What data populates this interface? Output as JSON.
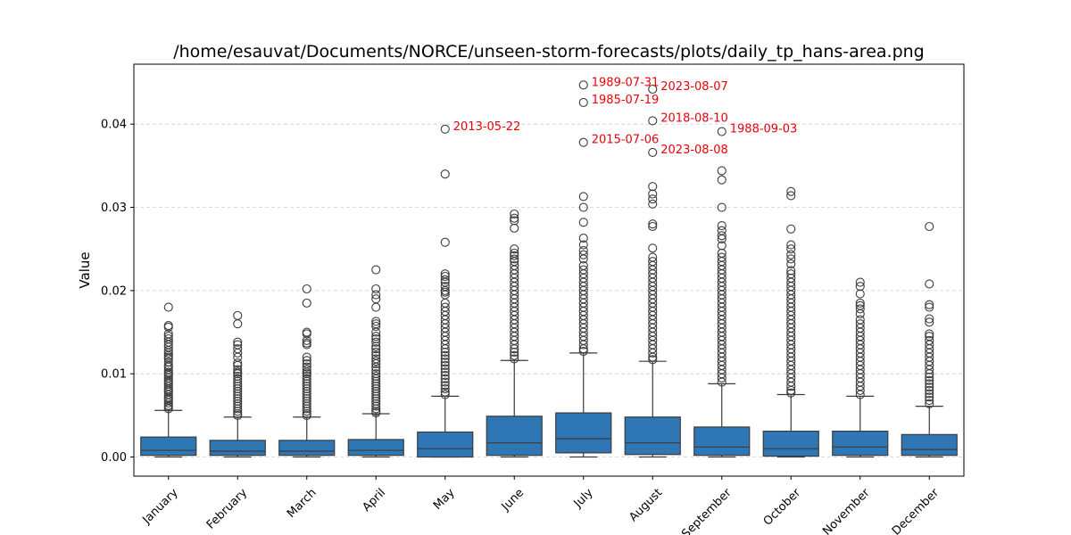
{
  "chart_data": {
    "type": "box",
    "title": "/home/esauvat/Documents/NORCE/unseen-storm-forecasts/plots/daily_tp_hans-area.png",
    "xlabel": "",
    "ylabel": "Value",
    "ylim": [
      -0.0023,
      0.0472
    ],
    "yticks": [
      0.0,
      0.01,
      0.02,
      0.03,
      0.04
    ],
    "ytick_labels": [
      "0.00",
      "0.01",
      "0.02",
      "0.03",
      "0.04"
    ],
    "grid": "y-dashed",
    "box_color": "#2f77b4",
    "annotation_color": "#e8000b",
    "categories": [
      "January",
      "February",
      "March",
      "April",
      "May",
      "June",
      "July",
      "August",
      "September",
      "October",
      "November",
      "December"
    ],
    "boxes": [
      {
        "month": "January",
        "min": 0.0,
        "q1": 0.0002,
        "median": 0.0008,
        "q3": 0.0024,
        "whisker_high": 0.0056,
        "outliers": [
          0.018,
          0.0158,
          0.0156,
          0.0148,
          0.0145,
          0.0142,
          0.0138,
          0.0135,
          0.0132,
          0.0128,
          0.0125,
          0.0122,
          0.012,
          0.0118,
          0.0114,
          0.011,
          0.0108,
          0.0105,
          0.0102,
          0.01,
          0.0098,
          0.0095,
          0.0092,
          0.009,
          0.0088,
          0.0085,
          0.0082,
          0.008,
          0.0078,
          0.0075,
          0.0072,
          0.007,
          0.0068,
          0.0065,
          0.0062,
          0.006,
          0.0058
        ]
      },
      {
        "month": "February",
        "min": 0.0,
        "q1": 0.0002,
        "median": 0.0007,
        "q3": 0.002,
        "whisker_high": 0.0048,
        "outliers": [
          0.017,
          0.016,
          0.0138,
          0.0135,
          0.013,
          0.0125,
          0.012,
          0.0113,
          0.011,
          0.0105,
          0.0102,
          0.01,
          0.0097,
          0.0094,
          0.0091,
          0.0088,
          0.0085,
          0.0082,
          0.0079,
          0.0076,
          0.0073,
          0.007,
          0.0067,
          0.0064,
          0.0061,
          0.0058,
          0.0055,
          0.0052,
          0.005
        ]
      },
      {
        "month": "March",
        "min": 0.0,
        "q1": 0.0002,
        "median": 0.0007,
        "q3": 0.002,
        "whisker_high": 0.0048,
        "outliers": [
          0.0202,
          0.0185,
          0.015,
          0.0148,
          0.014,
          0.0137,
          0.0135,
          0.012,
          0.0116,
          0.0112,
          0.0108,
          0.0105,
          0.0102,
          0.01,
          0.0097,
          0.0094,
          0.0091,
          0.0088,
          0.0085,
          0.0082,
          0.0079,
          0.0076,
          0.0073,
          0.007,
          0.0067,
          0.0064,
          0.0061,
          0.0058,
          0.0055,
          0.0052,
          0.005
        ]
      },
      {
        "month": "April",
        "min": 0.0,
        "q1": 0.0002,
        "median": 0.0008,
        "q3": 0.0021,
        "whisker_high": 0.0052,
        "outliers": [
          0.0225,
          0.0202,
          0.0195,
          0.019,
          0.018,
          0.0163,
          0.016,
          0.0157,
          0.015,
          0.0145,
          0.0142,
          0.0138,
          0.0133,
          0.013,
          0.0126,
          0.0122,
          0.0118,
          0.0115,
          0.0112,
          0.0108,
          0.0104,
          0.01,
          0.0097,
          0.0094,
          0.0091,
          0.0088,
          0.0085,
          0.0082,
          0.0079,
          0.0076,
          0.0073,
          0.007,
          0.0067,
          0.0064,
          0.0061,
          0.0058,
          0.0055,
          0.0053
        ]
      },
      {
        "month": "May",
        "min": 0.0,
        "q1": 0.0,
        "median": 0.001,
        "q3": 0.003,
        "whisker_high": 0.0073,
        "outliers": [
          0.0394,
          0.034,
          0.0258,
          0.022,
          0.0217,
          0.0213,
          0.021,
          0.0205,
          0.02,
          0.0198,
          0.0195,
          0.0185,
          0.018,
          0.0175,
          0.017,
          0.0165,
          0.016,
          0.0155,
          0.015,
          0.0145,
          0.014,
          0.0135,
          0.013,
          0.0126,
          0.0122,
          0.0118,
          0.0114,
          0.011,
          0.0106,
          0.0102,
          0.0098,
          0.0094,
          0.009,
          0.0086,
          0.0082,
          0.0078,
          0.0075
        ]
      },
      {
        "month": "June",
        "min": 0.0,
        "q1": 0.0002,
        "median": 0.0017,
        "q3": 0.0049,
        "whisker_high": 0.0116,
        "outliers": [
          0.0292,
          0.0287,
          0.0284,
          0.0275,
          0.025,
          0.0245,
          0.0242,
          0.0238,
          0.0235,
          0.023,
          0.0225,
          0.022,
          0.0215,
          0.021,
          0.0205,
          0.02,
          0.0195,
          0.019,
          0.0185,
          0.018,
          0.0175,
          0.017,
          0.0165,
          0.016,
          0.0155,
          0.015,
          0.0145,
          0.014,
          0.0135,
          0.013,
          0.0126,
          0.0122,
          0.0118
        ]
      },
      {
        "month": "July",
        "min": 0.0,
        "q1": 0.0005,
        "median": 0.0022,
        "q3": 0.0053,
        "whisker_high": 0.0125,
        "outliers": [
          0.0447,
          0.0426,
          0.0378,
          0.0313,
          0.03,
          0.0282,
          0.0263,
          0.0255,
          0.0248,
          0.0243,
          0.0238,
          0.023,
          0.0225,
          0.022,
          0.0215,
          0.021,
          0.0205,
          0.02,
          0.0195,
          0.019,
          0.0185,
          0.018,
          0.0175,
          0.017,
          0.0165,
          0.016,
          0.0155,
          0.015,
          0.0145,
          0.014,
          0.0135,
          0.013,
          0.0127
        ]
      },
      {
        "month": "August",
        "min": 0.0,
        "q1": 0.0003,
        "median": 0.0017,
        "q3": 0.0048,
        "whisker_high": 0.0115,
        "outliers": [
          0.0442,
          0.0404,
          0.0366,
          0.0325,
          0.0316,
          0.031,
          0.0304,
          0.028,
          0.0277,
          0.0251,
          0.024,
          0.0235,
          0.023,
          0.0225,
          0.022,
          0.0215,
          0.021,
          0.0205,
          0.02,
          0.0195,
          0.019,
          0.0185,
          0.018,
          0.0175,
          0.017,
          0.0165,
          0.016,
          0.0155,
          0.015,
          0.0145,
          0.014,
          0.0135,
          0.013,
          0.0125,
          0.012,
          0.0117
        ]
      },
      {
        "month": "September",
        "min": 0.0,
        "q1": 0.0002,
        "median": 0.0012,
        "q3": 0.0036,
        "whisker_high": 0.0088,
        "outliers": [
          0.0391,
          0.0344,
          0.0333,
          0.03,
          0.0278,
          0.0272,
          0.0266,
          0.0262,
          0.0254,
          0.0245,
          0.024,
          0.0235,
          0.023,
          0.0225,
          0.022,
          0.0215,
          0.021,
          0.0205,
          0.02,
          0.0195,
          0.019,
          0.0185,
          0.018,
          0.0175,
          0.017,
          0.0165,
          0.016,
          0.0155,
          0.015,
          0.0145,
          0.014,
          0.0135,
          0.013,
          0.0125,
          0.012,
          0.0115,
          0.011,
          0.0105,
          0.01,
          0.0095,
          0.009
        ]
      },
      {
        "month": "October",
        "min": 0.0,
        "q1": 0.0001,
        "median": 0.001,
        "q3": 0.0031,
        "whisker_high": 0.0075,
        "outliers": [
          0.0319,
          0.0314,
          0.0274,
          0.0255,
          0.025,
          0.0243,
          0.0238,
          0.0232,
          0.0224,
          0.022,
          0.0215,
          0.021,
          0.0205,
          0.02,
          0.0195,
          0.019,
          0.0185,
          0.018,
          0.0175,
          0.017,
          0.0165,
          0.016,
          0.0155,
          0.015,
          0.0145,
          0.014,
          0.0135,
          0.013,
          0.0125,
          0.012,
          0.0115,
          0.011,
          0.0105,
          0.01,
          0.0095,
          0.009,
          0.0085,
          0.008,
          0.0077
        ]
      },
      {
        "month": "November",
        "min": 0.0,
        "q1": 0.0002,
        "median": 0.0012,
        "q3": 0.0031,
        "whisker_high": 0.0073,
        "outliers": [
          0.021,
          0.0205,
          0.0196,
          0.0185,
          0.0182,
          0.0178,
          0.0172,
          0.0165,
          0.016,
          0.0155,
          0.015,
          0.0145,
          0.014,
          0.0135,
          0.013,
          0.0125,
          0.012,
          0.0115,
          0.011,
          0.0105,
          0.01,
          0.0095,
          0.009,
          0.0085,
          0.008,
          0.0075
        ]
      },
      {
        "month": "December",
        "min": 0.0,
        "q1": 0.0002,
        "median": 0.0009,
        "q3": 0.0027,
        "whisker_high": 0.0061,
        "outliers": [
          0.0277,
          0.0208,
          0.0183,
          0.018,
          0.0166,
          0.0162,
          0.0148,
          0.0145,
          0.014,
          0.0135,
          0.013,
          0.0125,
          0.012,
          0.0115,
          0.011,
          0.0105,
          0.01,
          0.0096,
          0.0092,
          0.0088,
          0.0084,
          0.008,
          0.0076,
          0.0072,
          0.0068,
          0.0064
        ]
      }
    ],
    "annotations": [
      {
        "month": "May",
        "value": 0.0394,
        "text": "2013-05-22"
      },
      {
        "month": "July",
        "value": 0.0447,
        "text": "1989-07-31"
      },
      {
        "month": "July",
        "value": 0.0426,
        "text": "1985-07-19"
      },
      {
        "month": "July",
        "value": 0.0378,
        "text": "2015-07-06"
      },
      {
        "month": "August",
        "value": 0.0442,
        "text": "2023-08-07"
      },
      {
        "month": "August",
        "value": 0.0404,
        "text": "2018-08-10"
      },
      {
        "month": "August",
        "value": 0.0366,
        "text": "2023-08-08"
      },
      {
        "month": "September",
        "value": 0.0391,
        "text": "1988-09-03"
      }
    ]
  }
}
